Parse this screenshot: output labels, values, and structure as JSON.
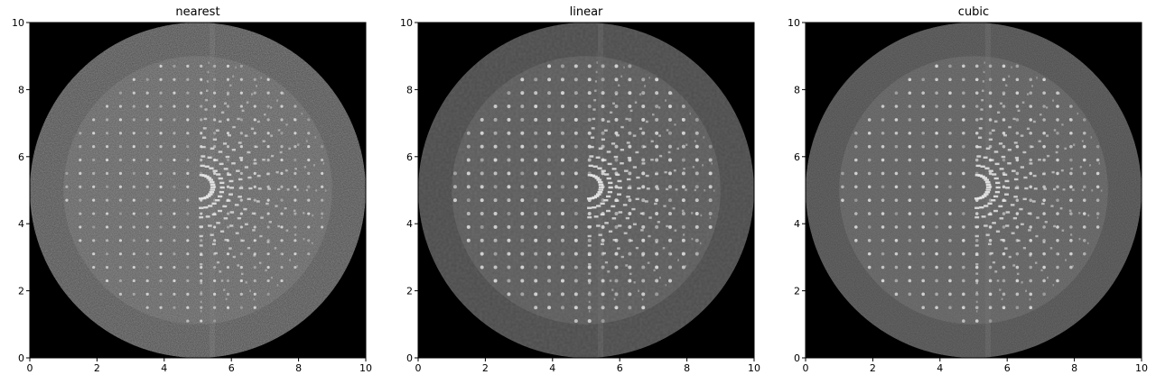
{
  "chart_data": [
    {
      "type": "heatmap",
      "title": "nearest",
      "xlim": [
        0,
        10
      ],
      "ylim": [
        0,
        10
      ],
      "xticks": [
        0,
        2,
        4,
        6,
        8,
        10
      ],
      "yticks": [
        0,
        2,
        4,
        6,
        8,
        10
      ],
      "tick_labels": [
        "0",
        "2",
        "4",
        "6",
        "8",
        "10"
      ],
      "colormap": "gray",
      "disk_center": [
        5,
        5
      ],
      "disk_radius": 5,
      "inner_disk_radius": 4,
      "arc_center": [
        5.1,
        5.1
      ]
    },
    {
      "type": "heatmap",
      "title": "linear",
      "xlim": [
        0,
        10
      ],
      "ylim": [
        0,
        10
      ],
      "xticks": [
        0,
        2,
        4,
        6,
        8,
        10
      ],
      "yticks": [
        0,
        2,
        4,
        6,
        8,
        10
      ],
      "tick_labels": [
        "0",
        "2",
        "4",
        "6",
        "8",
        "10"
      ],
      "colormap": "gray",
      "disk_center": [
        5,
        5
      ],
      "disk_radius": 5,
      "inner_disk_radius": 4,
      "arc_center": [
        5.1,
        5.1
      ]
    },
    {
      "type": "heatmap",
      "title": "cubic",
      "xlim": [
        0,
        10
      ],
      "ylim": [
        0,
        10
      ],
      "xticks": [
        0,
        2,
        4,
        6,
        8,
        10
      ],
      "yticks": [
        0,
        2,
        4,
        6,
        8,
        10
      ],
      "tick_labels": [
        "0",
        "2",
        "4",
        "6",
        "8",
        "10"
      ],
      "colormap": "gray",
      "disk_center": [
        5,
        5
      ],
      "disk_radius": 5,
      "inner_disk_radius": 4,
      "arc_center": [
        5.1,
        5.1
      ]
    }
  ]
}
